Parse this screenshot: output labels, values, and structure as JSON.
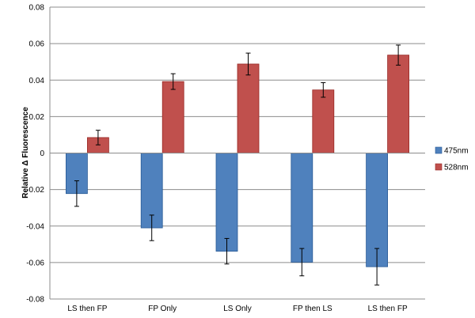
{
  "chart_data": {
    "type": "bar",
    "categories": [
      "LS then FP",
      "FP Only",
      "LS Only",
      "FP then LS",
      "LS then FP"
    ],
    "series": [
      {
        "name": "475nm",
        "color": "#4f81bd",
        "values": [
          -0.0222,
          -0.041,
          -0.0538,
          -0.0598,
          -0.0623
        ],
        "errors": [
          0.007,
          0.007,
          0.007,
          0.0075,
          0.01
        ]
      },
      {
        "name": "528nm",
        "color": "#c0504d",
        "values": [
          0.0085,
          0.0392,
          0.0488,
          0.0346,
          0.0537
        ],
        "errors": [
          0.004,
          0.0043,
          0.006,
          0.004,
          0.0055
        ]
      }
    ],
    "ylabel": "Relative Δ Fluorescence",
    "ylim": [
      -0.08,
      0.08
    ],
    "yticks": [
      -0.08,
      -0.06,
      -0.04,
      -0.02,
      0,
      0.02,
      0.04,
      0.06,
      0.08
    ],
    "ytick_labels": [
      "-0.08",
      "-0.06",
      "-0.04",
      "-0.02",
      "0",
      "0.02",
      "0.04",
      "0.06",
      "0.08"
    ],
    "grid": "horizontal",
    "legend_position": "right"
  }
}
